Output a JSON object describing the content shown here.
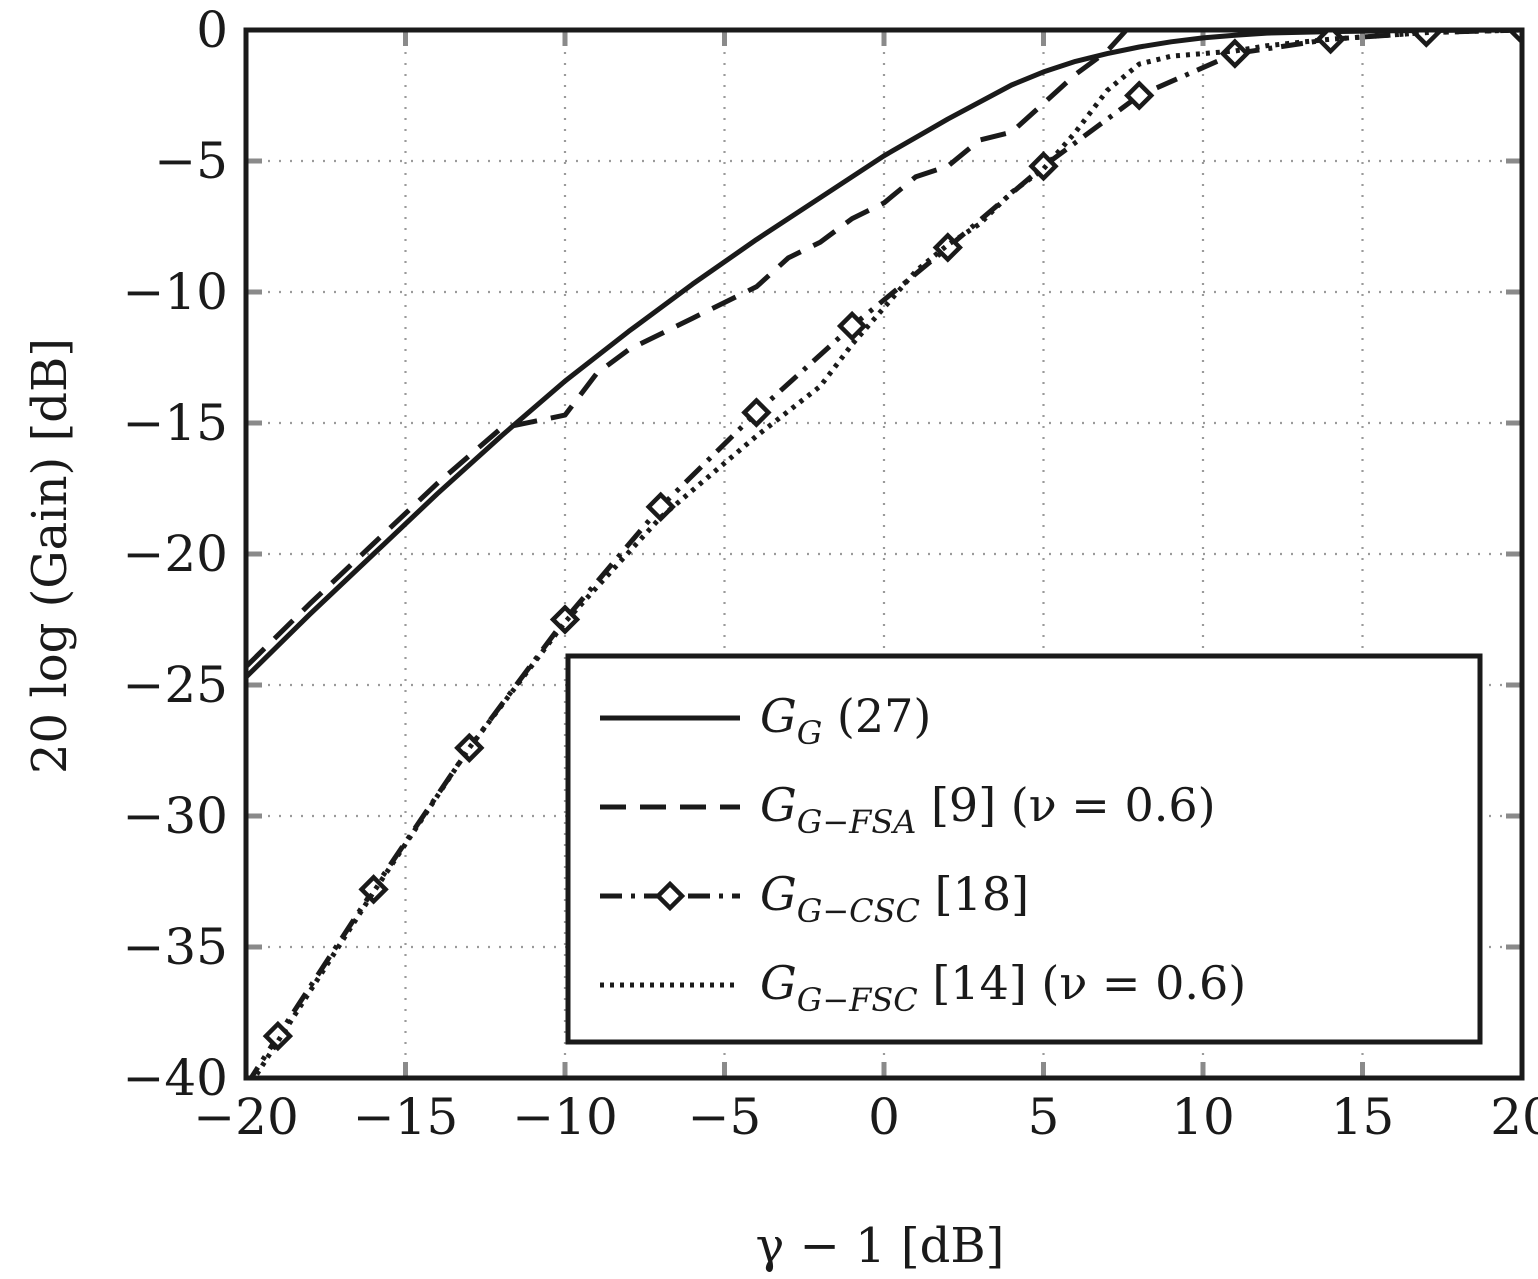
{
  "chart_data": {
    "type": "line",
    "xlabel": "γ − 1 [dB]",
    "ylabel": "20 log (Gain) [dB]",
    "xlim": [
      -20,
      20
    ],
    "ylim": [
      -40,
      0
    ],
    "x_ticks": [
      -20,
      -15,
      -10,
      -5,
      0,
      5,
      10,
      15,
      20
    ],
    "y_ticks": [
      0,
      -5,
      -10,
      -15,
      -20,
      -25,
      -30,
      -35,
      -40
    ],
    "x_tick_labels": [
      "−20",
      "−15",
      "−10",
      "−5",
      "0",
      "5",
      "10",
      "15",
      "20"
    ],
    "y_tick_labels": [
      "0",
      "−5",
      "−10",
      "−15",
      "−20",
      "−25",
      "−30",
      "−35",
      "−40"
    ],
    "grid": true,
    "legend_position": "bottom-right",
    "series": [
      {
        "name": "G_G (27)",
        "legend": {
          "main": "G",
          "sub": "G",
          "rest": " (27)"
        },
        "style": "solid",
        "marker": "none",
        "x": [
          -20,
          -18,
          -16,
          -14,
          -12,
          -10,
          -8,
          -6,
          -4,
          -2,
          0,
          2,
          4,
          5,
          6,
          7,
          8,
          9,
          10,
          11,
          12,
          14,
          16,
          18,
          20
        ],
        "y": [
          -24.7,
          -22.3,
          -20.0,
          -17.7,
          -15.5,
          -13.4,
          -11.5,
          -9.7,
          -8.0,
          -6.4,
          -4.8,
          -3.4,
          -2.1,
          -1.6,
          -1.2,
          -0.9,
          -0.65,
          -0.45,
          -0.3,
          -0.2,
          -0.12,
          -0.06,
          -0.03,
          -0.01,
          0
        ]
      },
      {
        "name": "G_{G−FSA} [9] (ν = 0.6)",
        "legend": {
          "main": "G",
          "sub": "G−FSA",
          "rest": " [9] (ν = 0.6)"
        },
        "style": "dashed",
        "marker": "none",
        "x": [
          -20,
          -18,
          -16,
          -14,
          -12,
          -10,
          -9,
          -8,
          -6,
          -4,
          -3,
          -2,
          -1,
          0,
          1,
          2,
          3,
          4,
          5,
          6,
          7,
          7.6
        ],
        "y": [
          -24.3,
          -21.9,
          -19.6,
          -17.3,
          -15.2,
          -14.7,
          -13.1,
          -12.2,
          -11.0,
          -9.8,
          -8.7,
          -8.1,
          -7.2,
          -6.6,
          -5.6,
          -5.2,
          -4.2,
          -3.9,
          -2.8,
          -1.7,
          -0.8,
          0
        ]
      },
      {
        "name": "G_{G−CSC} [18]",
        "legend": {
          "main": "G",
          "sub": "G−CSC",
          "rest": " [18]"
        },
        "style": "dashdot",
        "marker": "diamond",
        "x": [
          -20,
          -19,
          -16,
          -13,
          -10,
          -7,
          -4,
          -1,
          2,
          5,
          8,
          11,
          14,
          17,
          20
        ],
        "y": [
          -40.3,
          -38.4,
          -32.8,
          -27.4,
          -22.5,
          -18.2,
          -14.6,
          -11.3,
          -8.3,
          -5.2,
          -2.5,
          -0.9,
          -0.35,
          -0.1,
          0
        ]
      },
      {
        "name": "G_{G−FSC} [14] (ν = 0.6)",
        "legend": {
          "main": "G",
          "sub": "G−FSC",
          "rest": " [14] (ν = 0.6)"
        },
        "style": "dotted",
        "marker": "none",
        "x": [
          -20,
          -19,
          -16,
          -13,
          -10,
          -7,
          -4,
          -2,
          -1,
          0,
          1,
          2,
          3,
          4,
          5,
          6,
          7,
          8,
          9,
          10,
          11,
          12,
          14,
          17,
          20
        ],
        "y": [
          -40.5,
          -38.6,
          -32.9,
          -27.4,
          -22.6,
          -18.6,
          -15.5,
          -13.6,
          -12.0,
          -10.6,
          -9.2,
          -8.2,
          -7.4,
          -6.2,
          -5.3,
          -3.9,
          -2.3,
          -1.3,
          -1.0,
          -0.9,
          -0.8,
          -0.6,
          -0.35,
          -0.1,
          0
        ]
      }
    ]
  }
}
